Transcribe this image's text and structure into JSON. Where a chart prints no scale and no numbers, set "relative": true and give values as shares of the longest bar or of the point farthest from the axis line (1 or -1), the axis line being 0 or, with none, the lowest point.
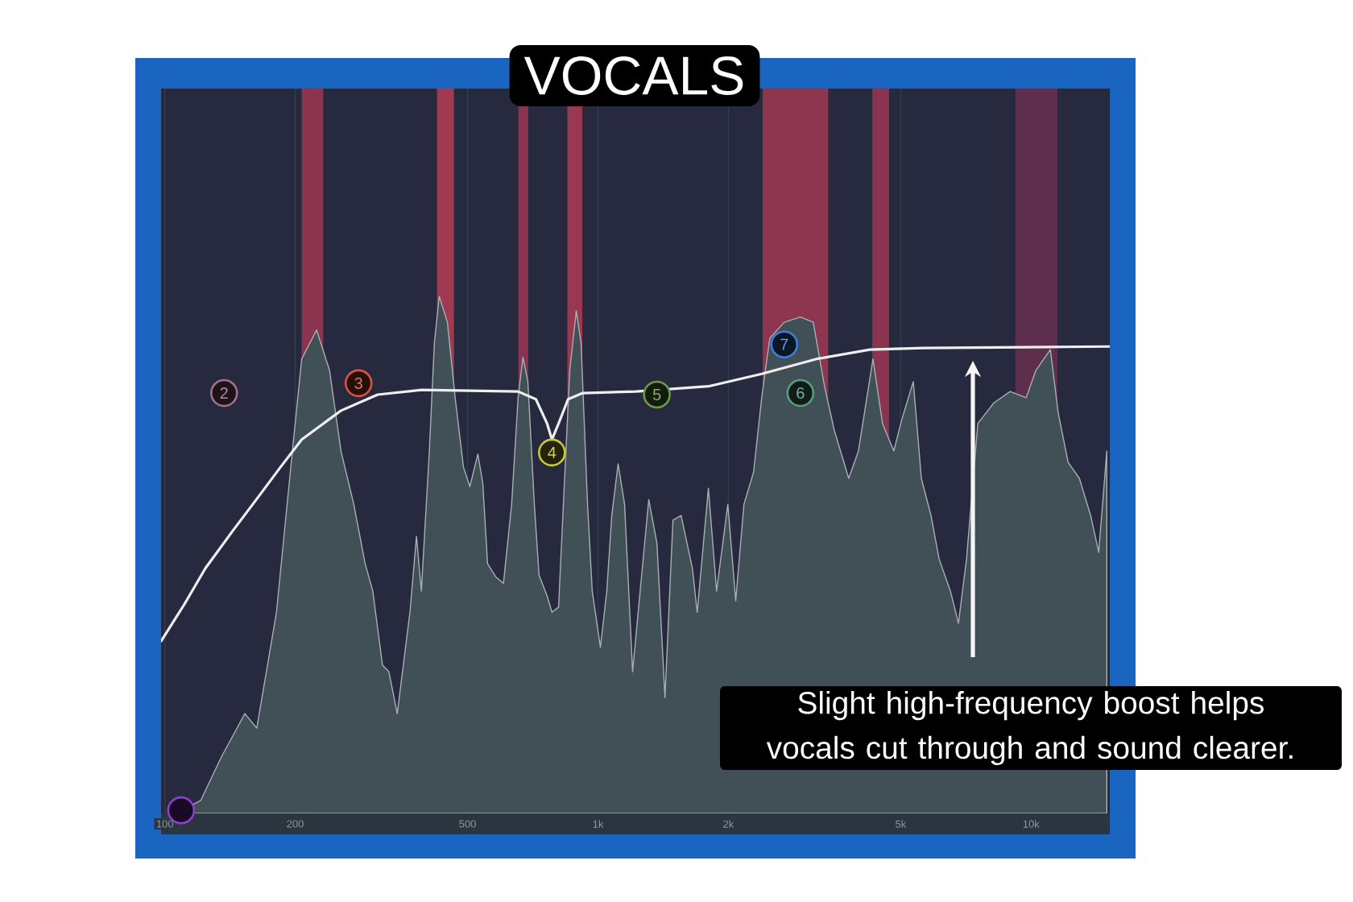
{
  "chart_data": {
    "type": "area",
    "title": "VOCALS",
    "relative": true,
    "log": "x",
    "grid": "x",
    "xlim": [
      98,
      15200
    ],
    "xticks": [
      100,
      200,
      500,
      {
        "value": 1000,
        "label": "1k"
      },
      {
        "value": 2000,
        "label": "2k"
      },
      {
        "value": 5000,
        "label": "5k"
      },
      {
        "value": 10000,
        "label": "10k"
      }
    ],
    "bands": [
      {
        "axis": "x",
        "from": 207,
        "to": 232,
        "color": "#8a3450"
      },
      {
        "axis": "x",
        "from": 425,
        "to": 465,
        "color": "#a03a50"
      },
      {
        "axis": "x",
        "from": 655,
        "to": 690,
        "color": "#8a3450"
      },
      {
        "axis": "x",
        "from": 850,
        "to": 920,
        "color": "#9a3850"
      },
      {
        "axis": "x",
        "from": 2400,
        "to": 3400,
        "color": "#8e3550"
      },
      {
        "axis": "x",
        "from": 4300,
        "to": 4700,
        "color": "#8a3450"
      },
      {
        "axis": "x",
        "from": 9200,
        "to": 11500,
        "color": "#5e2f4d"
      }
    ],
    "series": [
      {
        "color": "#414f57",
        "x": [
          106,
          121,
          135,
          153,
          163,
          181,
          197,
          207,
          224,
          240,
          255,
          273,
          290,
          302,
          318,
          329,
          344,
          368,
          381,
          391,
          408,
          419,
          430,
          449,
          468,
          489,
          506,
          528,
          542,
          556,
          580,
          605,
          632,
          654,
          671,
          689,
          713,
          731,
          763,
          783,
          811,
          832,
          861,
          891,
          914,
          946,
          970,
          1013,
          1048,
          1076,
          1113,
          1152,
          1202,
          1310,
          1368,
          1428,
          1490,
          1556,
          1652,
          1695,
          1799,
          1879,
          1995,
          2080,
          2173,
          2287,
          2388,
          2493,
          2692,
          2934,
          3141,
          3335,
          3513,
          3794,
          3995,
          4315,
          4540,
          4820,
          5035,
          5346,
          5581,
          5875,
          6134,
          6513,
          6798,
          7096,
          7535,
          8204,
          8947,
          9745,
          10260,
          11080,
          11560,
          12180,
          12930,
          13730,
          14330,
          14960
        ],
        "values": [
          0,
          0.025,
          0.109,
          0.193,
          0.165,
          0.389,
          0.701,
          0.879,
          0.935,
          0.857,
          0.701,
          0.598,
          0.483,
          0.43,
          0.287,
          0.274,
          0.193,
          0.389,
          0.536,
          0.43,
          0.701,
          0.91,
          1.0,
          0.95,
          0.804,
          0.67,
          0.632,
          0.695,
          0.639,
          0.483,
          0.458,
          0.445,
          0.598,
          0.804,
          0.882,
          0.835,
          0.598,
          0.461,
          0.421,
          0.389,
          0.399,
          0.598,
          0.857,
          0.972,
          0.91,
          0.598,
          0.43,
          0.321,
          0.43,
          0.576,
          0.676,
          0.598,
          0.274,
          0.607,
          0.523,
          0.224,
          0.567,
          0.576,
          0.474,
          0.389,
          0.629,
          0.43,
          0.598,
          0.411,
          0.598,
          0.66,
          0.804,
          0.919,
          0.95,
          0.96,
          0.95,
          0.826,
          0.741,
          0.648,
          0.701,
          0.879,
          0.754,
          0.701,
          0.763,
          0.835,
          0.648,
          0.576,
          0.492,
          0.43,
          0.368,
          0.492,
          0.754,
          0.794,
          0.816,
          0.804,
          0.857,
          0.897,
          0.773,
          0.679,
          0.648,
          0.576,
          0.505,
          0.701
        ]
      },
      {
        "type": "line",
        "color": "#eeeeee",
        "x": [
          98,
          111,
          124,
          143,
          166,
          185,
          207,
          255,
          310,
          391,
          654,
          719,
          763,
          783,
          811,
          853,
          922,
          1223,
          1799,
          2388,
          3197,
          4243,
          5630,
          15200
        ],
        "values": [
          0.333,
          0.405,
          0.474,
          0.545,
          0.617,
          0.67,
          0.723,
          0.779,
          0.81,
          0.819,
          0.816,
          0.801,
          0.754,
          0.723,
          0.754,
          0.801,
          0.813,
          0.816,
          0.826,
          0.85,
          0.879,
          0.897,
          0.9,
          0.903
        ]
      },
      {
        "type": "scatter",
        "marker": "circle",
        "x": [
          109,
          137,
          280,
          783,
          1368,
          2934,
          2692
        ],
        "values": [
          0.006,
          0.813,
          0.832,
          0.698,
          0.81,
          0.813,
          0.907
        ],
        "colors": [
          "#8a3fd0",
          "#a0708f",
          "#d9533d",
          "#c8c83a",
          "#6a9a4a",
          "#5a9a80",
          "#3f7fd6"
        ]
      }
    ],
    "annotations": [
      {
        "text": "2",
        "x": 137,
        "y": 0.813
      },
      {
        "text": "3",
        "x": 280,
        "y": 0.832
      },
      {
        "text": "4",
        "x": 783,
        "y": 0.698
      },
      {
        "text": "5",
        "x": 1368,
        "y": 0.81
      },
      {
        "text": "6",
        "x": 2934,
        "y": 0.813
      },
      {
        "text": "7",
        "x": 2692,
        "y": 0.907
      },
      "Slight high-frequency boost helps vocals cut through and sound clearer."
    ]
  }
}
